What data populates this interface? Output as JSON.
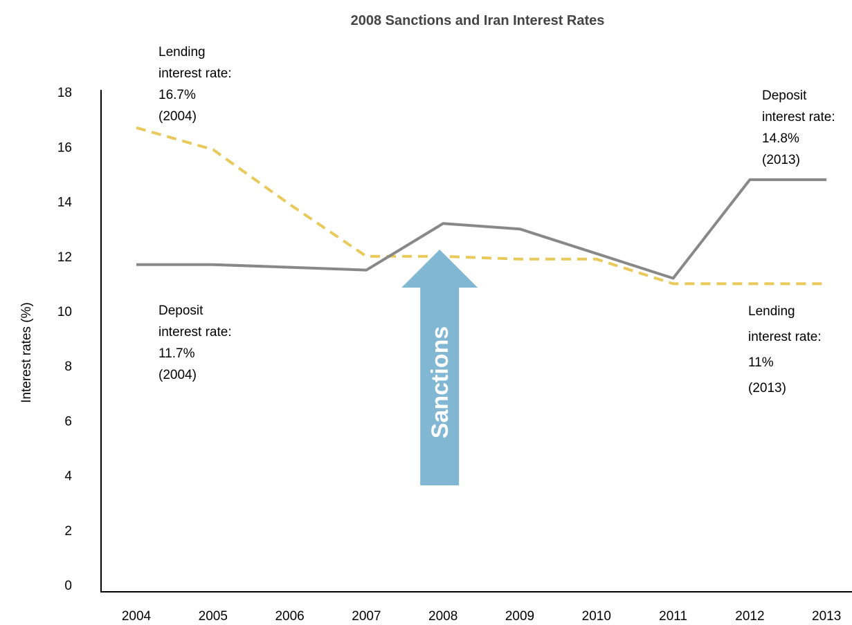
{
  "chart_data": {
    "type": "line",
    "title": "2008 Sanctions and Iran Interest Rates",
    "xlabel": "",
    "ylabel": "Interest rates (%)",
    "x": [
      "2004",
      "2005",
      "2006",
      "2007",
      "2008",
      "2009",
      "2010",
      "2011",
      "2012",
      "2013"
    ],
    "ylim": [
      0,
      18
    ],
    "yticks": [
      0,
      2,
      4,
      6,
      8,
      10,
      12,
      14,
      16,
      18
    ],
    "grid": false,
    "series": [
      {
        "key": "lending",
        "color": "#e8c95a",
        "style": "dashed",
        "values": [
          16.7,
          15.9,
          13.9,
          12.0,
          12.0,
          11.9,
          11.9,
          11.0,
          11.0,
          11.0
        ]
      },
      {
        "key": "deposit",
        "color": "#888888",
        "style": "solid",
        "values": [
          11.7,
          11.7,
          11.6,
          11.5,
          13.2,
          13.0,
          12.1,
          11.2,
          14.8,
          14.8
        ]
      }
    ],
    "annotations": [
      {
        "key": "lending_2004",
        "lines": [
          "Lending",
          "interest rate:",
          "16.7%",
          "(2004)"
        ]
      },
      {
        "key": "deposit_2004",
        "lines": [
          "Deposit",
          "interest rate:",
          "11.7%",
          "(2004)"
        ]
      },
      {
        "key": "deposit_2013",
        "lines": [
          "Deposit",
          "interest rate:",
          "14.8%",
          "(2013)"
        ]
      },
      {
        "key": "lending_2013",
        "lines": [
          "Lending",
          "interest rate:",
          "11%",
          "(2013)"
        ]
      }
    ],
    "arrow": {
      "label": "Sanctions",
      "color": "#82b7d4",
      "x": "2008"
    }
  }
}
